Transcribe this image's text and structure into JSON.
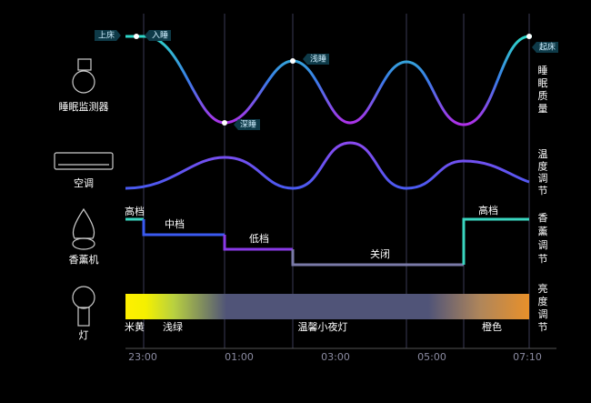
{
  "devices": [
    "睡眠监测器",
    "空调",
    "香薰机",
    "灯"
  ],
  "side_labels": [
    "睡眠质量",
    "温度调节",
    "香薰调节",
    "亮度调节"
  ],
  "times": [
    "23:00",
    "01:00",
    "03:00",
    "05:00",
    "07:10"
  ],
  "sleep_tags": [
    "上床",
    "入睡",
    "深睡",
    "浅睡",
    "起床"
  ],
  "aroma_levels": [
    "高档",
    "中档",
    "低档",
    "关闭",
    "高档"
  ],
  "light_labels": [
    "米黄",
    "浅绿",
    "温馨小夜灯",
    "橙色"
  ]
}
